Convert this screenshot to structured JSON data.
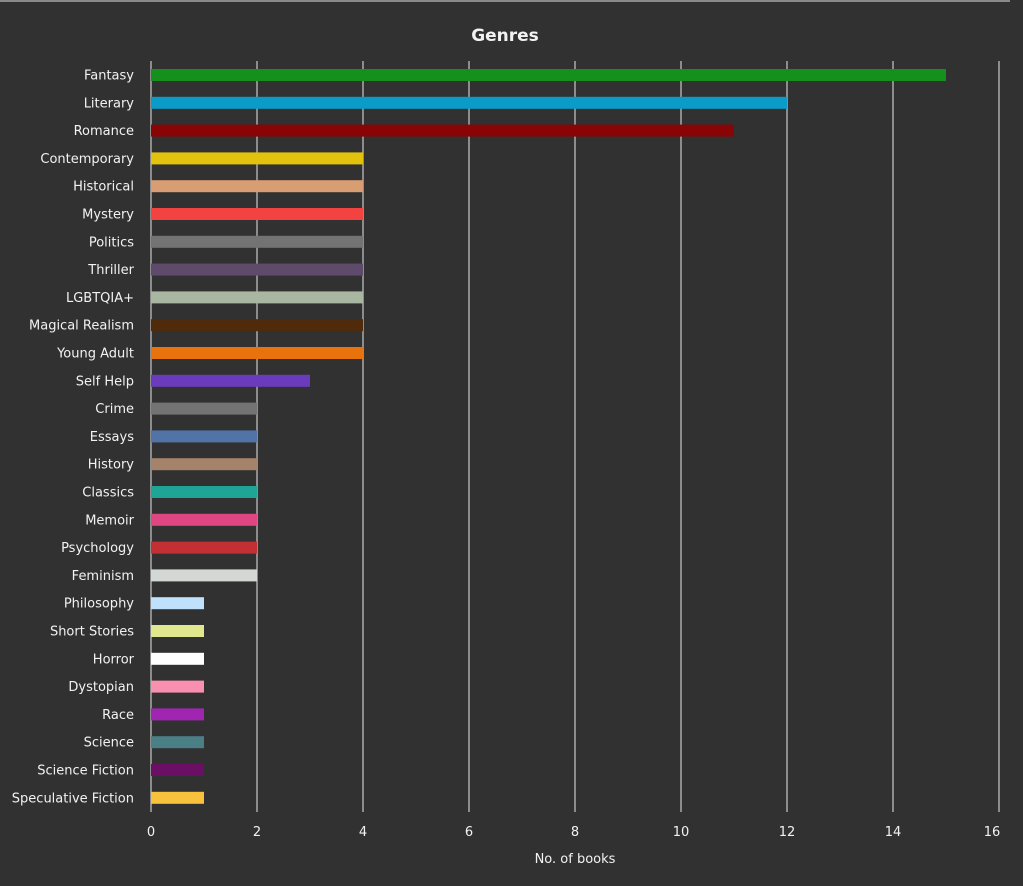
{
  "chart_data": {
    "type": "bar",
    "orientation": "horizontal",
    "title": "Genres",
    "xlabel": "No. of books",
    "ylabel": "",
    "xlim": [
      0,
      16
    ],
    "xticks": [
      0,
      2,
      4,
      6,
      8,
      10,
      12,
      14,
      16
    ],
    "grid": "vertical",
    "legend": "none",
    "categories": [
      "Fantasy",
      "Literary",
      "Romance",
      "Contemporary",
      "Historical",
      "Mystery",
      "Politics",
      "Thriller",
      "LGBTQIA+",
      "Magical Realism",
      "Young Adult",
      "Self Help",
      "Crime",
      "Essays",
      "History",
      "Classics",
      "Memoir",
      "Psychology",
      "Feminism",
      "Philosophy",
      "Short Stories",
      "Horror",
      "Dystopian",
      "Race",
      "Science",
      "Science Fiction",
      "Speculative Fiction"
    ],
    "values": [
      15,
      12,
      11,
      4,
      4,
      4,
      4,
      4,
      4,
      4,
      4,
      3,
      2,
      2,
      2,
      2,
      2,
      2,
      2,
      1,
      1,
      1,
      1,
      1,
      1,
      1,
      1
    ],
    "colors": [
      "#16901c",
      "#0b9bc9",
      "#890405",
      "#e2c20d",
      "#d99d74",
      "#f34340",
      "#737373",
      "#5e4b6b",
      "#a8b6a2",
      "#4f2a0b",
      "#e8720c",
      "#6a3cbd",
      "#737373",
      "#5173a6",
      "#a5836a",
      "#1fa596",
      "#e04682",
      "#c33033",
      "#d3d8d4",
      "#bfe1fb",
      "#e1e78c",
      "#ffffff",
      "#f990b0",
      "#a025b1",
      "#4a7f86",
      "#6a0f63",
      "#f8c23c"
    ]
  },
  "colors": {
    "background": "#313131",
    "text": "#f2f2f2",
    "gridline": "#e6e6e6"
  }
}
